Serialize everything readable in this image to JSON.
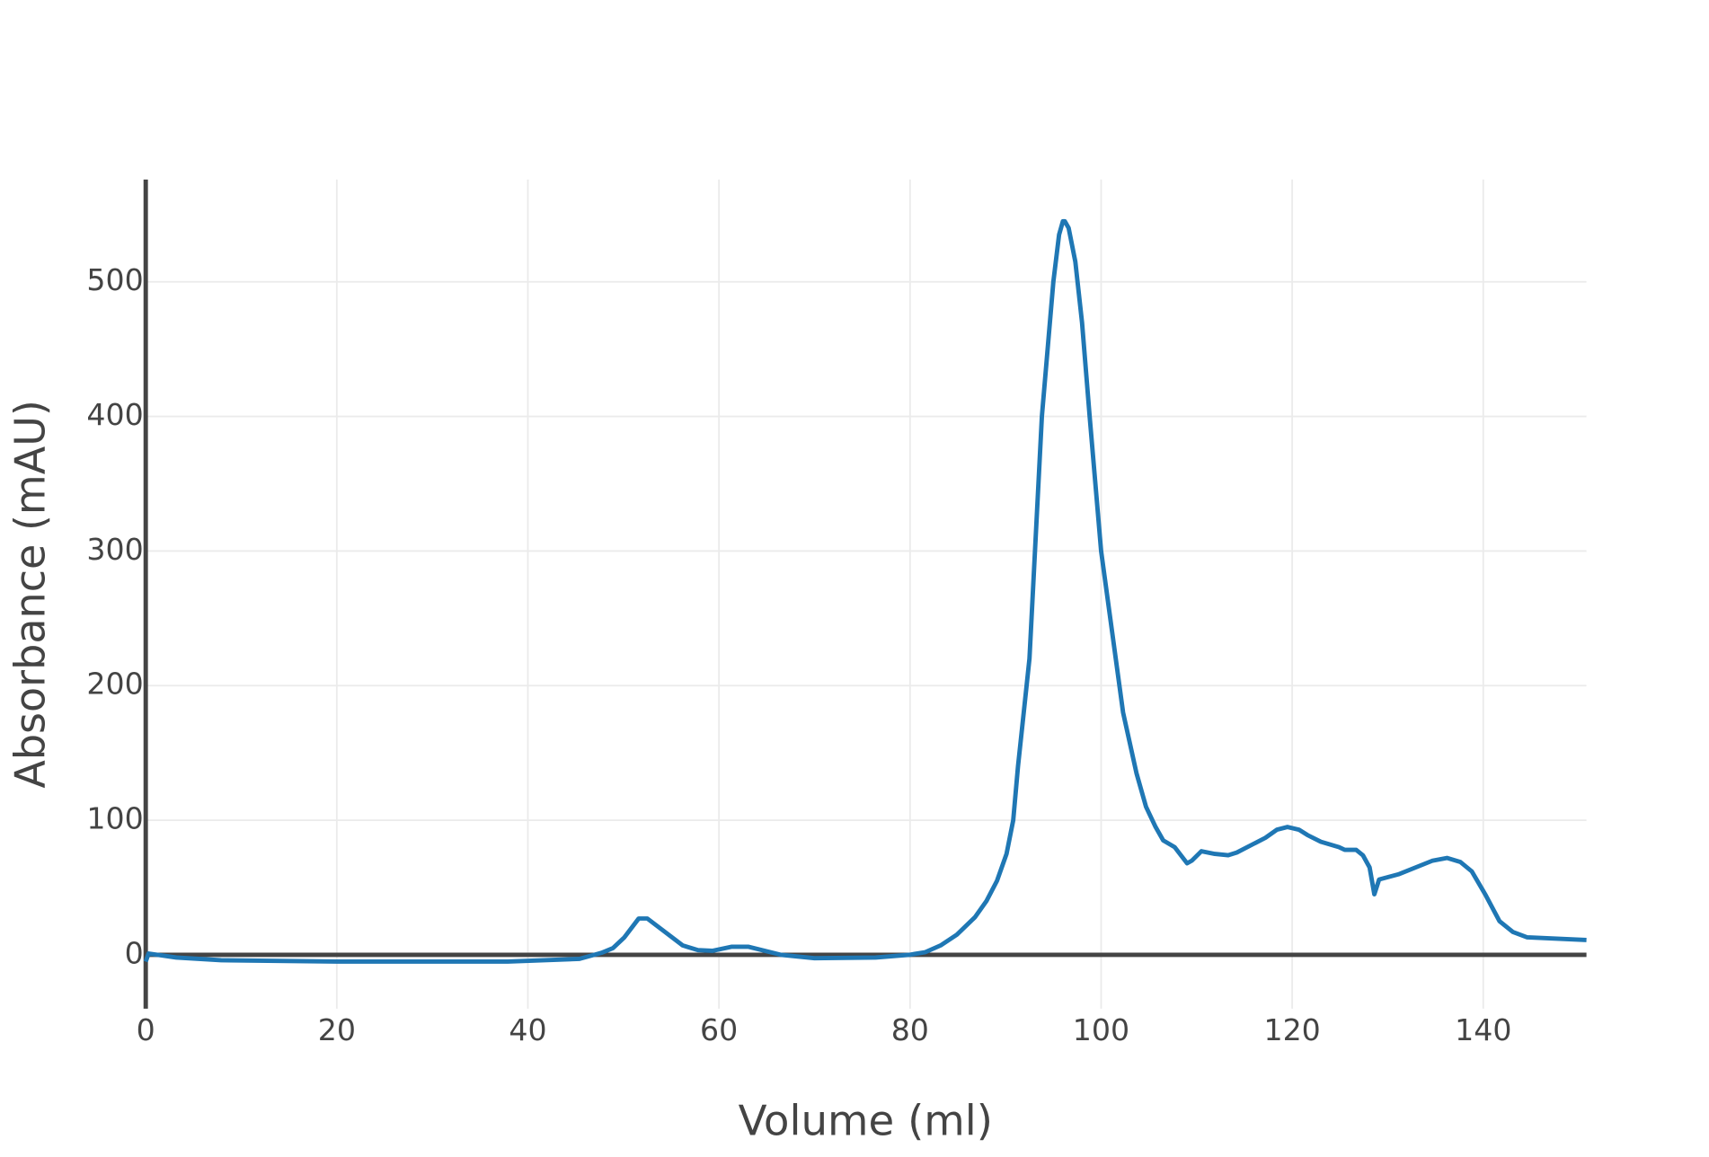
{
  "chart_data": {
    "type": "line",
    "x_label": "Volume (ml)",
    "y_label": "Absorbance (mAU)",
    "x": [
      0,
      0.3,
      3.2,
      7.9,
      20,
      37.9,
      45.4,
      47.7,
      48.9,
      50.1,
      51.6,
      52.5,
      56.2,
      57.8,
      59.3,
      61.3,
      63.1,
      66.5,
      70,
      76.4,
      79.9,
      81.6,
      83.2,
      84.9,
      86.8,
      88,
      89.1,
      90.1,
      90.8,
      91.3,
      92.5,
      93.8,
      95.0,
      95.6,
      96.0,
      96.2,
      96.6,
      97.3,
      98.0,
      98.8,
      100,
      100.9,
      102.3,
      103.7,
      104.7,
      105.7,
      106.5,
      107.7,
      109.0,
      109.5,
      110.5,
      111.9,
      113.3,
      114.2,
      117.2,
      118.4,
      119.5,
      120.7,
      121.6,
      123,
      124.9,
      125.5,
      126.7,
      127.4,
      128.1,
      128.6,
      129.1,
      131.2,
      134.7,
      136.2,
      137.6,
      138.8,
      140.2,
      141.7,
      143.1,
      144.6,
      147.7,
      150.8
    ],
    "values": [
      -5,
      1,
      -2,
      -4,
      -5,
      -5,
      -3,
      1.5,
      5,
      13,
      27,
      27,
      7,
      3.5,
      3,
      6,
      6,
      0,
      -2.5,
      -2,
      0,
      2,
      7,
      15,
      28,
      40,
      55,
      75,
      100,
      140,
      220,
      400,
      500,
      535,
      545,
      545,
      540,
      515,
      470,
      400,
      300,
      253,
      180,
      135,
      110,
      95,
      85,
      80,
      68,
      70,
      77,
      75,
      74,
      76,
      87,
      93,
      95,
      93,
      89,
      84,
      80,
      78,
      78,
      74,
      65,
      45,
      56,
      60,
      70,
      72,
      69,
      62,
      45,
      25,
      17,
      13,
      12,
      11
    ],
    "color": "#1f77b4",
    "xlim": [
      0,
      150.8
    ],
    "ylim": [
      -40,
      576
    ],
    "xticks": [
      0,
      20,
      40,
      60,
      80,
      100,
      120,
      140
    ],
    "yticks": [
      0,
      100,
      200,
      300,
      400,
      500
    ],
    "grid": true
  }
}
